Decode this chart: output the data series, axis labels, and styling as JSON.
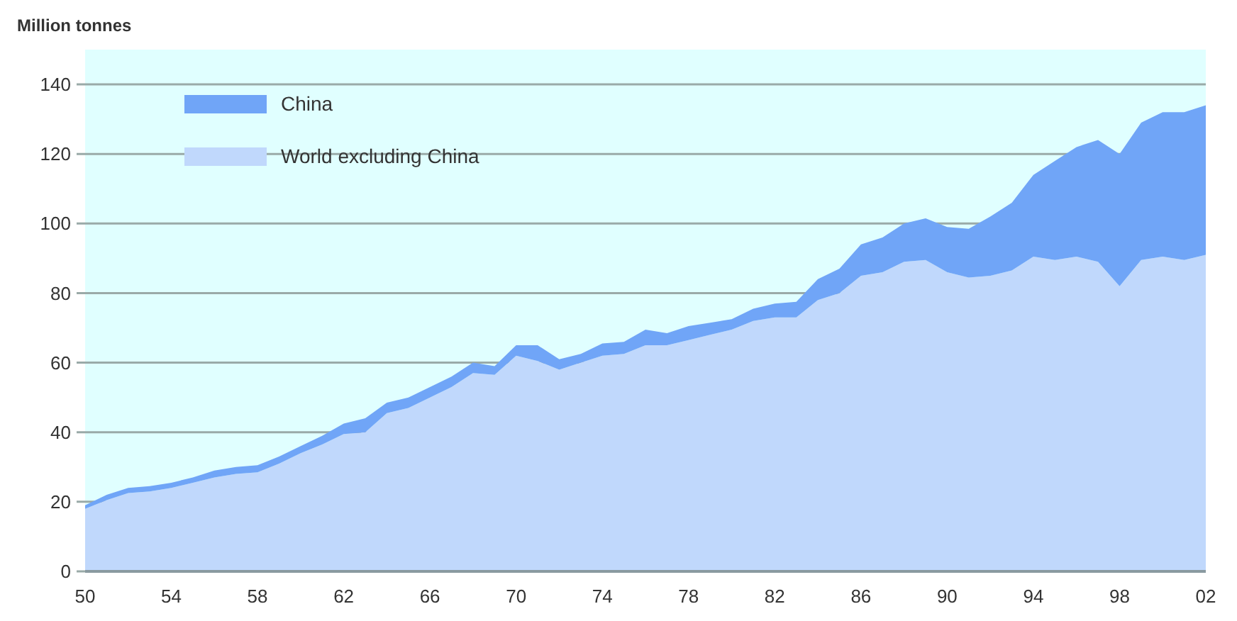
{
  "chart_data": {
    "type": "area",
    "stacked": true,
    "ylabel": "Million tonnes",
    "x": [
      1950,
      1951,
      1952,
      1953,
      1954,
      1955,
      1956,
      1957,
      1958,
      1959,
      1960,
      1961,
      1962,
      1963,
      1964,
      1965,
      1966,
      1967,
      1968,
      1969,
      1970,
      1971,
      1972,
      1973,
      1974,
      1975,
      1976,
      1977,
      1978,
      1979,
      1980,
      1981,
      1982,
      1983,
      1984,
      1985,
      1986,
      1987,
      1988,
      1989,
      1990,
      1991,
      1992,
      1993,
      1994,
      1995,
      1996,
      1997,
      1998,
      1999,
      2000,
      2001,
      2002
    ],
    "series": [
      {
        "name": "World excluding China",
        "color": "#c0d8fc",
        "values": [
          18,
          20.5,
          22.5,
          23,
          24,
          25.5,
          27,
          28,
          28.5,
          31,
          34,
          36.5,
          39.5,
          40,
          45.5,
          47,
          50,
          53,
          57,
          56.5,
          62,
          60.5,
          58,
          60,
          62,
          62.5,
          65,
          65,
          66.5,
          68,
          69.5,
          72,
          73,
          73,
          78,
          80,
          85,
          86,
          89,
          89.5,
          86,
          84.5,
          85,
          86.5,
          90.5,
          89.5,
          90.5,
          89,
          82,
          89.5,
          90.5,
          89.5,
          91
        ]
      },
      {
        "name": "China",
        "color": "#70a5f7",
        "values": [
          1,
          1.5,
          1.5,
          1.5,
          1.5,
          1.5,
          2,
          2,
          2,
          2,
          2,
          2.5,
          3,
          4,
          3,
          3,
          3,
          3,
          3,
          2.5,
          3,
          4.5,
          3,
          2.5,
          3.5,
          3.5,
          4.5,
          3.5,
          4,
          3.5,
          3,
          3.5,
          4,
          4.5,
          6,
          7,
          9,
          10,
          11,
          12,
          13,
          14,
          17,
          19.5,
          23.5,
          28.5,
          31.5,
          35,
          38,
          39.5,
          41.5,
          42.5,
          43
        ]
      }
    ],
    "xlim": [
      1950,
      2002
    ],
    "xticks": [
      {
        "value": 1950,
        "label": "50"
      },
      {
        "value": 1954,
        "label": "54"
      },
      {
        "value": 1958,
        "label": "58"
      },
      {
        "value": 1962,
        "label": "62"
      },
      {
        "value": 1966,
        "label": "66"
      },
      {
        "value": 1970,
        "label": "70"
      },
      {
        "value": 1974,
        "label": "74"
      },
      {
        "value": 1978,
        "label": "78"
      },
      {
        "value": 1982,
        "label": "82"
      },
      {
        "value": 1986,
        "label": "86"
      },
      {
        "value": 1990,
        "label": "90"
      },
      {
        "value": 1994,
        "label": "94"
      },
      {
        "value": 1998,
        "label": "98"
      },
      {
        "value": 2002,
        "label": "02"
      }
    ],
    "ylim": [
      0,
      150
    ],
    "yticks": [
      0,
      20,
      40,
      60,
      80,
      100,
      120,
      140
    ],
    "grid": "y",
    "legend": "top left"
  }
}
